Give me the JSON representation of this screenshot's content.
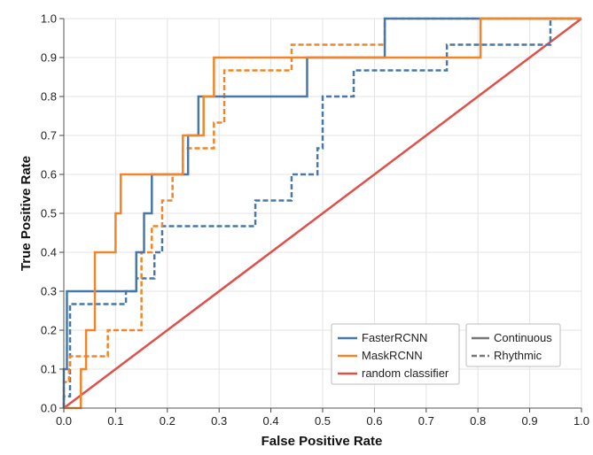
{
  "chart_data": {
    "type": "line",
    "title": "",
    "xlabel": "False Positive Rate",
    "ylabel": "True Positive Rate",
    "xlim": [
      0,
      1
    ],
    "ylim": [
      0,
      1
    ],
    "grid": true,
    "xticks": [
      "0.0",
      "0.1",
      "0.2",
      "0.3",
      "0.4",
      "0.5",
      "0.6",
      "0.7",
      "0.8",
      "0.9",
      "1.0"
    ],
    "yticks": [
      "0.0",
      "0.1",
      "0.2",
      "0.3",
      "0.4",
      "0.5",
      "0.6",
      "0.7",
      "0.8",
      "0.9",
      "1.0"
    ],
    "colors": {
      "FasterRCNN": "#4878a8",
      "MaskRCNN": "#f0862a",
      "random classifier": "#e0504a",
      "style_legend": "#777777"
    },
    "series": [
      {
        "name": "FasterRCNN",
        "style": "Continuous",
        "x": [
          0,
          0,
          0.006,
          0.006,
          0.13,
          0.13,
          0.14,
          0.14,
          0.155,
          0.155,
          0.17,
          0.17,
          0.24,
          0.24,
          0.26,
          0.26,
          0.47,
          0.47,
          0.62,
          0.62,
          1.0
        ],
        "y": [
          0,
          0.1,
          0.1,
          0.3,
          0.3,
          0.3,
          0.3,
          0.4,
          0.4,
          0.5,
          0.5,
          0.6,
          0.6,
          0.7,
          0.7,
          0.8,
          0.8,
          0.9,
          0.9,
          1.0,
          1.0
        ]
      },
      {
        "name": "FasterRCNN",
        "style": "Rhythmic",
        "x": [
          0,
          0,
          0.012,
          0.012,
          0.12,
          0.12,
          0.14,
          0.14,
          0.175,
          0.175,
          0.19,
          0.19,
          0.37,
          0.37,
          0.44,
          0.44,
          0.49,
          0.49,
          0.5,
          0.5,
          0.56,
          0.56,
          0.74,
          0.74,
          0.94,
          0.94,
          1.0
        ],
        "y": [
          0,
          0.03,
          0.03,
          0.267,
          0.267,
          0.3,
          0.3,
          0.333,
          0.333,
          0.4,
          0.4,
          0.467,
          0.467,
          0.533,
          0.533,
          0.6,
          0.6,
          0.667,
          0.667,
          0.8,
          0.8,
          0.867,
          0.867,
          0.933,
          0.933,
          1.0,
          1.0
        ]
      },
      {
        "name": "MaskRCNN",
        "style": "Continuous",
        "x": [
          0,
          0.033,
          0.033,
          0.043,
          0.043,
          0.06,
          0.06,
          0.1,
          0.1,
          0.11,
          0.11,
          0.21,
          0.21,
          0.23,
          0.23,
          0.27,
          0.27,
          0.29,
          0.29,
          0.805,
          0.805,
          1.0
        ],
        "y": [
          0,
          0,
          0.1,
          0.1,
          0.2,
          0.2,
          0.4,
          0.4,
          0.5,
          0.5,
          0.6,
          0.6,
          0.6,
          0.6,
          0.7,
          0.7,
          0.8,
          0.8,
          0.9,
          0.9,
          1.0,
          1.0
        ]
      },
      {
        "name": "MaskRCNN",
        "style": "Rhythmic",
        "x": [
          0,
          0,
          0.01,
          0.01,
          0.012,
          0.012,
          0.085,
          0.085,
          0.15,
          0.15,
          0.17,
          0.17,
          0.19,
          0.19,
          0.21,
          0.21,
          0.23,
          0.23,
          0.29,
          0.29,
          0.31,
          0.31,
          0.44,
          0.44,
          0.62,
          0.62,
          1.0
        ],
        "y": [
          0,
          0.067,
          0.067,
          0.1,
          0.1,
          0.133,
          0.133,
          0.2,
          0.2,
          0.4,
          0.4,
          0.467,
          0.467,
          0.533,
          0.533,
          0.6,
          0.6,
          0.667,
          0.667,
          0.733,
          0.733,
          0.867,
          0.867,
          0.933,
          0.933,
          1.0,
          1.0
        ]
      },
      {
        "name": "random classifier",
        "style": "Continuous",
        "x": [
          0,
          1
        ],
        "y": [
          0,
          1
        ]
      }
    ],
    "legend": {
      "placement": "bottom-right",
      "models": [
        "FasterRCNN",
        "MaskRCNN",
        "random classifier"
      ],
      "styles": [
        "Continuous",
        "Rhythmic"
      ]
    }
  }
}
